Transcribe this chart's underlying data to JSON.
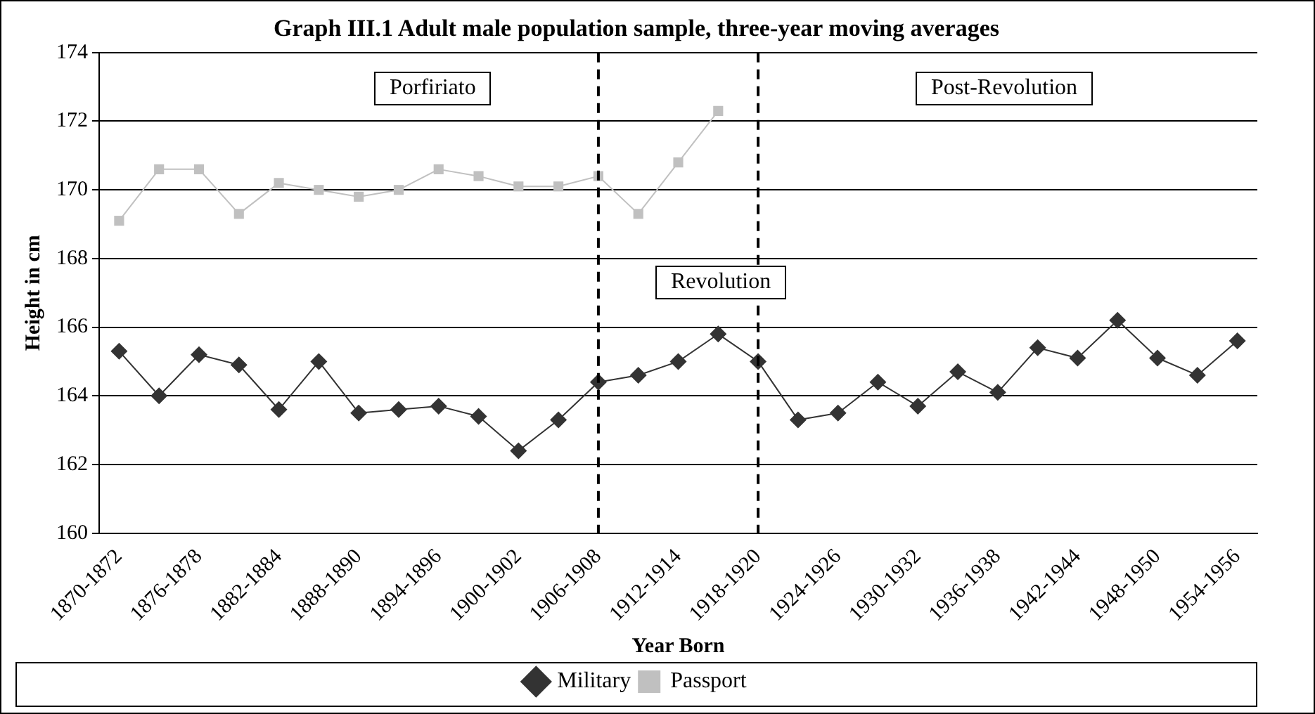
{
  "chart_data": {
    "type": "line",
    "title": "Graph III.1 Adult male population sample, three-year moving averages",
    "xlabel": "Year Born",
    "ylabel": "Height in cm",
    "categories": [
      "1870-1872",
      null,
      "1876-1878",
      null,
      "1882-1884",
      null,
      "1888-1890",
      null,
      "1894-1896",
      null,
      "1900-1902",
      null,
      "1906-1908",
      null,
      "1912-1914",
      null,
      "1918-1920",
      null,
      "1924-1926",
      null,
      "1930-1932",
      null,
      "1936-1938",
      null,
      "1942-1944",
      null,
      "1948-1950",
      null,
      "1954-1956"
    ],
    "series": [
      {
        "name": "Military",
        "color": "#333333",
        "marker": "diamond",
        "values": [
          165.3,
          164.0,
          165.2,
          164.9,
          163.6,
          165.0,
          163.5,
          163.6,
          163.7,
          163.4,
          162.4,
          163.3,
          164.4,
          164.6,
          165.0,
          165.8,
          165.0,
          163.3,
          163.5,
          164.4,
          163.7,
          164.7,
          164.1,
          165.4,
          165.1,
          166.2,
          165.1,
          164.6,
          165.6
        ]
      },
      {
        "name": "Passport",
        "color": "#c0c0c0",
        "marker": "square",
        "values": [
          169.1,
          170.6,
          170.6,
          169.3,
          170.2,
          170.0,
          169.8,
          170.0,
          170.6,
          170.4,
          170.1,
          170.1,
          170.4,
          169.3,
          170.8,
          172.3,
          null,
          null,
          null,
          null,
          null,
          null,
          null,
          null,
          null,
          null,
          null,
          null,
          null
        ]
      }
    ],
    "ylim": [
      160,
      174
    ],
    "yticks": [
      160,
      162,
      164,
      166,
      168,
      170,
      172,
      174
    ],
    "grid": "y",
    "legend": "bottom",
    "line_style": "solid",
    "ref_lines": [
      {
        "axis": "x",
        "value": "1906-1908",
        "line_style": "dashed",
        "color": "#000000"
      },
      {
        "axis": "x",
        "value": "1918-1920",
        "line_style": "dashed",
        "color": "#000000"
      }
    ],
    "annotations": [
      "Porfiriato",
      "Revolution",
      "Post-Revolution"
    ]
  }
}
